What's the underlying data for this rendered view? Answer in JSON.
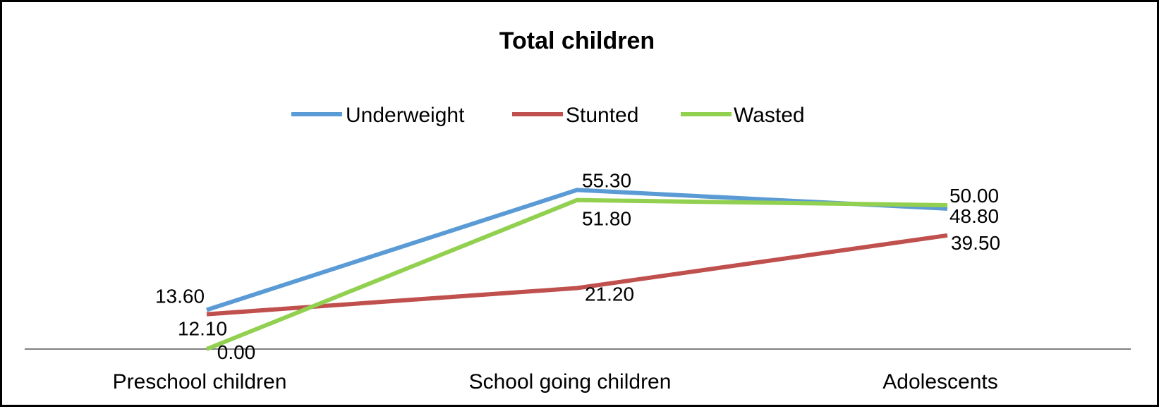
{
  "chart_data": {
    "type": "line",
    "title": "Total children",
    "categories": [
      "Preschool children",
      "School going children",
      "Adolescents"
    ],
    "series": [
      {
        "name": "Underweight",
        "color": "#5b9bd5",
        "values": [
          13.6,
          55.3,
          48.8
        ],
        "labels": [
          "13.60",
          "55.30",
          "48.80"
        ]
      },
      {
        "name": "Stunted",
        "color": "#c0504d",
        "values": [
          12.1,
          21.2,
          39.5
        ],
        "labels": [
          "12.10",
          "21.20",
          "39.50"
        ]
      },
      {
        "name": "Wasted",
        "color": "#92d050",
        "values": [
          0.0,
          51.8,
          50.0
        ],
        "labels": [
          "0.00",
          "51.80",
          "50.00"
        ]
      }
    ],
    "xlabel": "",
    "ylabel": "",
    "ylim": [
      0,
      60
    ],
    "grid": false,
    "legend": "top-center",
    "axis_color": "#808080"
  }
}
